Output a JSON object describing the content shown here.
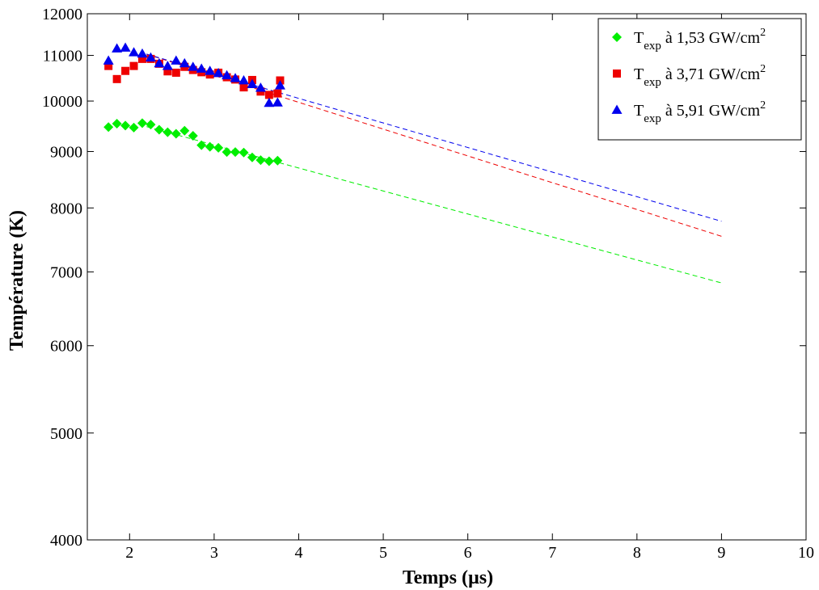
{
  "chart_data": {
    "type": "scatter",
    "xlabel": "Temps (µs)",
    "ylabel": "Température (K)",
    "xlim": [
      1.5,
      10
    ],
    "ylim": [
      4000,
      12000
    ],
    "yscale": "log",
    "x_ticks": [
      2,
      3,
      4,
      5,
      6,
      7,
      8,
      9,
      10
    ],
    "y_ticks": [
      4000,
      5000,
      6000,
      7000,
      8000,
      9000,
      10000,
      11000,
      12000
    ],
    "x_tick_labels": [
      "2",
      "3",
      "4",
      "5",
      "6",
      "7",
      "8",
      "9",
      "10"
    ],
    "y_tick_labels": [
      "4000",
      "5000",
      "6000",
      "7000",
      "8000",
      "9000",
      "10000",
      "11000",
      "12000"
    ],
    "grid": false,
    "legend_position": "top-right",
    "series": [
      {
        "name": "T",
        "label_sub": "exp",
        "label_rest": " à 1,53 GW/cm",
        "label_sup": "2",
        "marker": "diamond",
        "color": "#00ee00",
        "x": [
          1.75,
          1.85,
          1.95,
          2.05,
          2.15,
          2.25,
          2.35,
          2.45,
          2.55,
          2.65,
          2.75,
          2.85,
          2.95,
          3.05,
          3.15,
          3.25,
          3.35,
          3.45,
          3.55,
          3.65,
          3.75
        ],
        "y": [
          9470,
          9540,
          9500,
          9460,
          9550,
          9520,
          9420,
          9370,
          9340,
          9400,
          9300,
          9120,
          9090,
          9070,
          8990,
          8990,
          8980,
          8890,
          8840,
          8820,
          8830
        ],
        "fit": {
          "x": [
            2.2,
            9.0
          ],
          "y": [
            9480,
            6840
          ]
        }
      },
      {
        "name": "T",
        "label_sub": "exp",
        "label_rest": " à 3,71 GW/cm",
        "label_sup": "2",
        "marker": "square",
        "color": "#ee0000",
        "x": [
          1.75,
          1.85,
          1.95,
          2.05,
          2.15,
          2.25,
          2.35,
          2.45,
          2.55,
          2.65,
          2.75,
          2.85,
          2.95,
          3.05,
          3.15,
          3.25,
          3.35,
          3.45,
          3.55,
          3.65,
          3.75,
          3.78
        ],
        "y": [
          10760,
          10470,
          10650,
          10760,
          10920,
          10920,
          10810,
          10640,
          10610,
          10740,
          10670,
          10620,
          10570,
          10610,
          10510,
          10460,
          10290,
          10450,
          10200,
          10130,
          10160,
          10440
        ],
        "fit": {
          "x": [
            2.2,
            9.0
          ],
          "y": [
            11030,
            7540
          ]
        }
      },
      {
        "name": "T",
        "label_sub": "exp",
        "label_rest": " à 5,91 GW/cm",
        "label_sup": "2",
        "marker": "triangle",
        "color": "#0000ee",
        "x": [
          1.75,
          1.85,
          1.95,
          2.05,
          2.15,
          2.25,
          2.35,
          2.45,
          2.55,
          2.65,
          2.75,
          2.85,
          2.95,
          3.05,
          3.15,
          3.25,
          3.35,
          3.45,
          3.55,
          3.65,
          3.75,
          3.78
        ],
        "y": [
          10880,
          11160,
          11180,
          11070,
          11040,
          10950,
          10820,
          10760,
          10880,
          10820,
          10740,
          10700,
          10650,
          10600,
          10550,
          10490,
          10440,
          10360,
          10280,
          9960,
          9970,
          10330
        ],
        "fit": {
          "x": [
            2.2,
            9.0
          ],
          "y": [
            11030,
            7780
          ]
        }
      }
    ]
  }
}
